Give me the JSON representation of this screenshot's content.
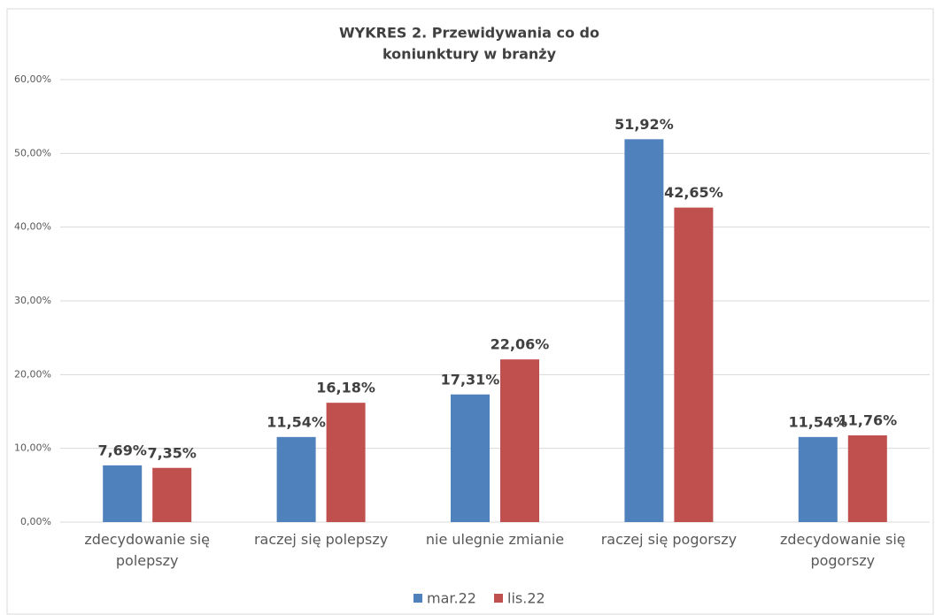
{
  "chart_data": {
    "type": "bar",
    "title": [
      "WYKRES 2. Przewidywania co do",
      "koniunktury w branży"
    ],
    "categories": [
      "zdecydowanie się polepszy",
      "raczej się polepszy",
      "nie ulegnie zmianie",
      "raczej się pogorszy",
      "zdecydowanie się pogorszy"
    ],
    "series": [
      {
        "name": "mar.22",
        "color": "#4f81bd",
        "values": [
          7.69,
          11.54,
          17.31,
          51.92,
          11.54
        ],
        "value_labels": [
          "7,69%",
          "11,54%",
          "17,31%",
          "51,92%",
          "11,54%"
        ]
      },
      {
        "name": "lis.22",
        "color": "#c0504d",
        "values": [
          7.35,
          16.18,
          22.06,
          42.65,
          11.76
        ],
        "value_labels": [
          "7,35%",
          "16,18%",
          "22,06%",
          "42,65%",
          "11,76%"
        ]
      }
    ],
    "ylim": [
      0,
      60
    ],
    "yticks": [
      {
        "value": 0,
        "label": "0,00%"
      },
      {
        "value": 10,
        "label": "10,00%"
      },
      {
        "value": 20,
        "label": "20,00%"
      },
      {
        "value": 30,
        "label": "30,00%"
      },
      {
        "value": 40,
        "label": "40,00%"
      },
      {
        "value": 50,
        "label": "50,00%"
      },
      {
        "value": 60,
        "label": "60,00%"
      }
    ],
    "grid": true,
    "legend": "bottom"
  }
}
